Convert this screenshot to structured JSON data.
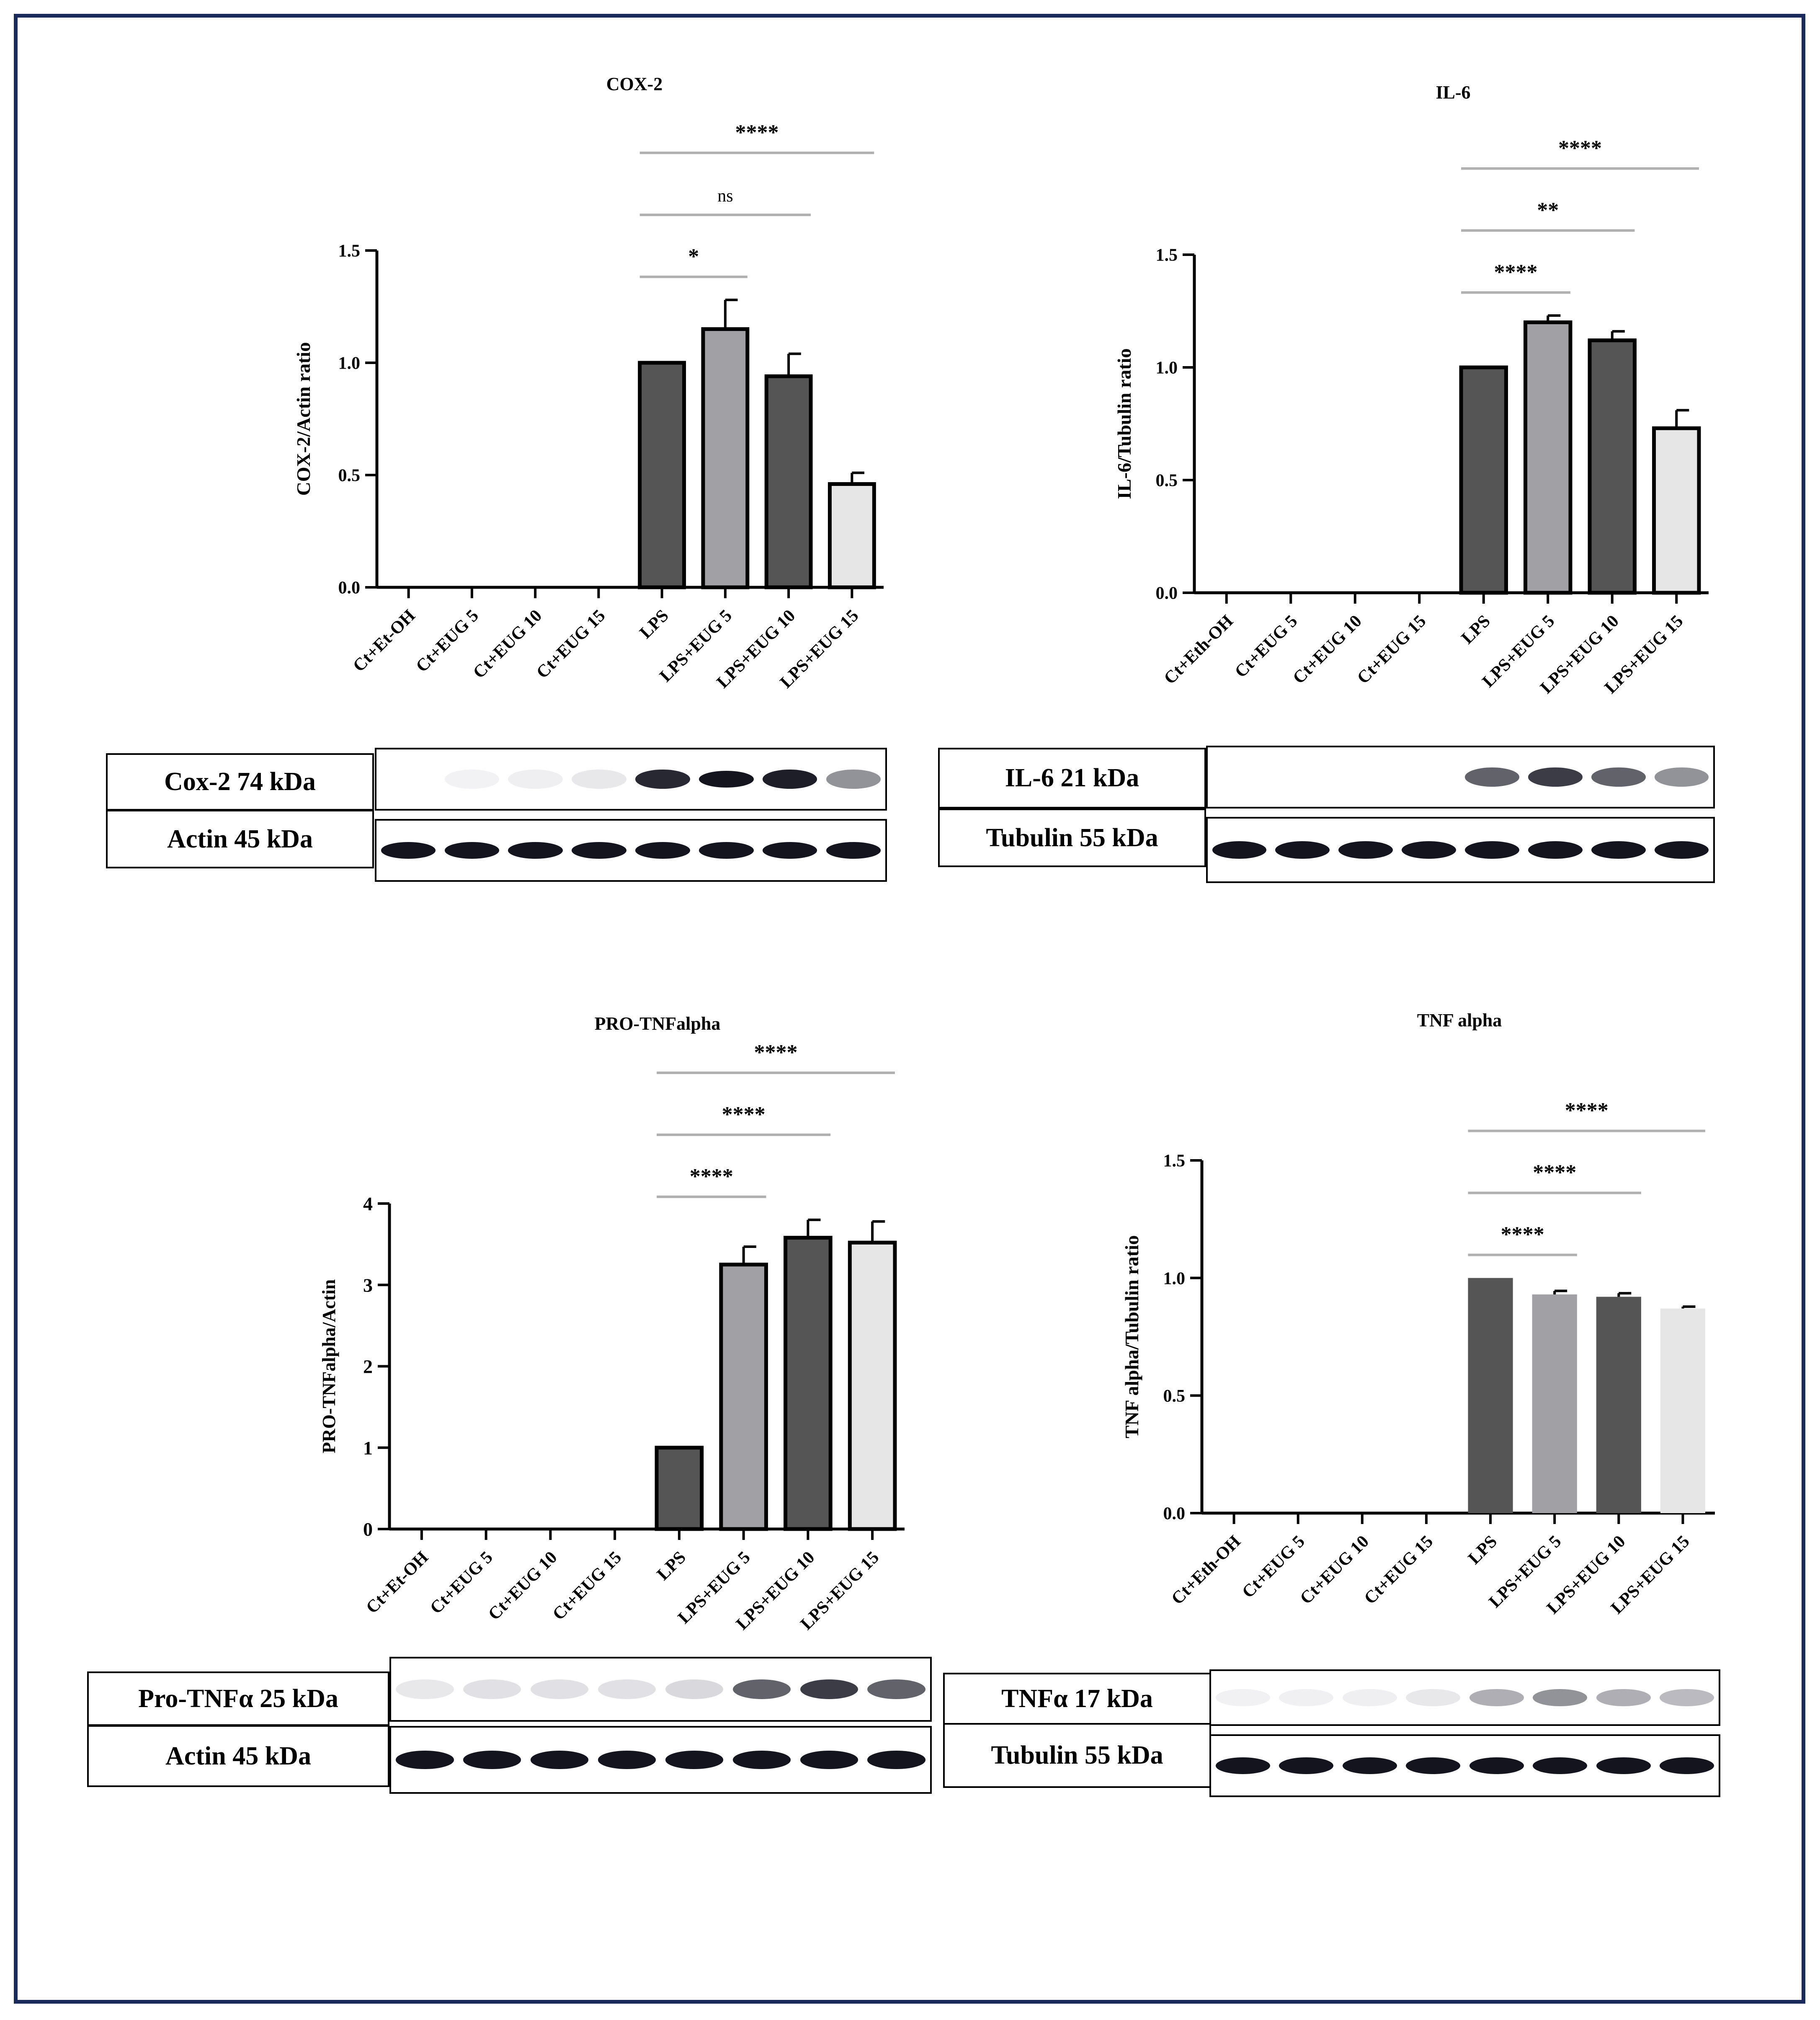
{
  "colors": {
    "frame": "#1a2a5a",
    "dark_bar": "#555555",
    "mid_bar": "#a0a0a5",
    "light_bar": "#e6e6e6",
    "sig_line": "#b0b0b0"
  },
  "chart_data": [
    {
      "type": "bar",
      "title": "COX-2",
      "ylabel": "COX-2/Actin ratio",
      "xlabel": "",
      "ylim": [
        0,
        1.5
      ],
      "yticks": [
        "0.0",
        "0.5",
        "1.0",
        "1.5"
      ],
      "categories": [
        "Ct+Et-OH",
        "Ct+EUG 5",
        "Ct+EUG 10",
        "Ct+EUG 15",
        "LPS",
        "LPS+EUG 5",
        "LPS+EUG 10",
        "LPS+EUG 15"
      ],
      "values": [
        0,
        0,
        0,
        0,
        1.0,
        1.15,
        0.94,
        0.46
      ],
      "errors": [
        0,
        0,
        0,
        0,
        0,
        0.13,
        0.1,
        0.05
      ],
      "bar_colors": [
        "dark",
        "dark",
        "dark",
        "dark",
        "dark",
        "mid",
        "dark",
        "light"
      ],
      "outlined": true,
      "grid": false,
      "significance": [
        {
          "from": 4,
          "to": 5,
          "label": "*"
        },
        {
          "from": 4,
          "to": 6,
          "label": "ns"
        },
        {
          "from": 4,
          "to": 7,
          "label": "****"
        }
      ]
    },
    {
      "type": "bar",
      "title": "IL-6",
      "ylabel": "IL-6/Tubulin ratio",
      "xlabel": "",
      "ylim": [
        0,
        1.5
      ],
      "yticks": [
        "0.0",
        "0.5",
        "1.0",
        "1.5"
      ],
      "categories": [
        "Ct+Eth-OH",
        "Ct+EUG 5",
        "Ct+EUG 10",
        "Ct+EUG 15",
        "LPS",
        "LPS+EUG 5",
        "LPS+EUG 10",
        "LPS+EUG 15"
      ],
      "values": [
        0,
        0,
        0,
        0,
        1.0,
        1.2,
        1.12,
        0.73
      ],
      "errors": [
        0,
        0,
        0,
        0,
        0,
        0.03,
        0.04,
        0.08
      ],
      "bar_colors": [
        "dark",
        "dark",
        "dark",
        "dark",
        "dark",
        "mid",
        "dark",
        "light"
      ],
      "outlined": true,
      "grid": false,
      "significance": [
        {
          "from": 4,
          "to": 5,
          "label": "****"
        },
        {
          "from": 4,
          "to": 6,
          "label": "**"
        },
        {
          "from": 4,
          "to": 7,
          "label": "****"
        }
      ]
    },
    {
      "type": "bar",
      "title": "PRO-TNFalpha",
      "ylabel": "PRO-TNFalpha/Actin",
      "xlabel": "",
      "ylim": [
        0,
        4
      ],
      "yticks": [
        "0",
        "1",
        "2",
        "3",
        "4"
      ],
      "categories": [
        "Ct+Et-OH",
        "Ct+EUG 5",
        "Ct+EUG 10",
        "Ct+EUG 15",
        "LPS",
        "LPS+EUG 5",
        "LPS+EUG 10",
        "LPS+EUG 15"
      ],
      "values": [
        0,
        0,
        0,
        0,
        1.0,
        3.25,
        3.58,
        3.52
      ],
      "errors": [
        0,
        0,
        0,
        0,
        0,
        0.22,
        0.22,
        0.26
      ],
      "bar_colors": [
        "dark",
        "dark",
        "dark",
        "dark",
        "dark",
        "mid",
        "dark",
        "light"
      ],
      "outlined": true,
      "grid": false,
      "significance": [
        {
          "from": 4,
          "to": 5,
          "label": "****"
        },
        {
          "from": 4,
          "to": 6,
          "label": "****"
        },
        {
          "from": 4,
          "to": 7,
          "label": "****"
        }
      ]
    },
    {
      "type": "bar",
      "title": "TNF alpha",
      "ylabel": "TNF alpha/Tubulin ratio",
      "xlabel": "",
      "ylim": [
        0,
        1.5
      ],
      "yticks": [
        "0.0",
        "0.5",
        "1.0",
        "1.5"
      ],
      "categories": [
        "Ct+Eth-OH",
        "Ct+EUG 5",
        "Ct+EUG 10",
        "Ct+EUG 15",
        "LPS",
        "LPS+EUG 5",
        "LPS+EUG 10",
        "LPS+EUG 15"
      ],
      "values": [
        0,
        0,
        0,
        0,
        1.0,
        0.93,
        0.92,
        0.87
      ],
      "errors": [
        0,
        0,
        0,
        0,
        0,
        0.015,
        0.015,
        0.008
      ],
      "bar_colors": [
        "dark",
        "dark",
        "dark",
        "dark",
        "dark",
        "mid",
        "dark",
        "light"
      ],
      "outlined": false,
      "grid": false,
      "significance": [
        {
          "from": 4,
          "to": 5,
          "label": "****"
        },
        {
          "from": 4,
          "to": 6,
          "label": "****"
        },
        {
          "from": 4,
          "to": 7,
          "label": "****"
        }
      ]
    }
  ],
  "blots": [
    {
      "rows": [
        {
          "label": "Cox-2 74 kDa",
          "bands": [
            0,
            0.08,
            0.15,
            0.2,
            0.9,
            1.0,
            0.95,
            0.6
          ]
        },
        {
          "label": "Actin 45 kDa",
          "bands": [
            1,
            1,
            1,
            1,
            1,
            1,
            1,
            1
          ]
        }
      ]
    },
    {
      "rows": [
        {
          "label": "IL-6 21 kDa",
          "bands": [
            0,
            0,
            0,
            0,
            0.75,
            0.85,
            0.75,
            0.6
          ]
        },
        {
          "label": "Tubulin 55 kDa",
          "bands": [
            1,
            1,
            1,
            1,
            1,
            1,
            1,
            1
          ]
        }
      ]
    },
    {
      "rows": [
        {
          "label": "Pro-TNFα 25 kDa",
          "bands": [
            0.2,
            0.25,
            0.25,
            0.25,
            0.3,
            0.75,
            0.85,
            0.75
          ]
        },
        {
          "label": "Actin 45 kDa",
          "bands": [
            1,
            1,
            1,
            1,
            1,
            1,
            1,
            1
          ]
        }
      ]
    },
    {
      "rows": [
        {
          "label": "TNFα 17 kDa",
          "bands": [
            0.1,
            0.12,
            0.15,
            0.2,
            0.5,
            0.6,
            0.5,
            0.45
          ]
        },
        {
          "label": "Tubulin 55 kDa",
          "bands": [
            1,
            1,
            1,
            1,
            1,
            1,
            1,
            1
          ]
        }
      ]
    }
  ]
}
